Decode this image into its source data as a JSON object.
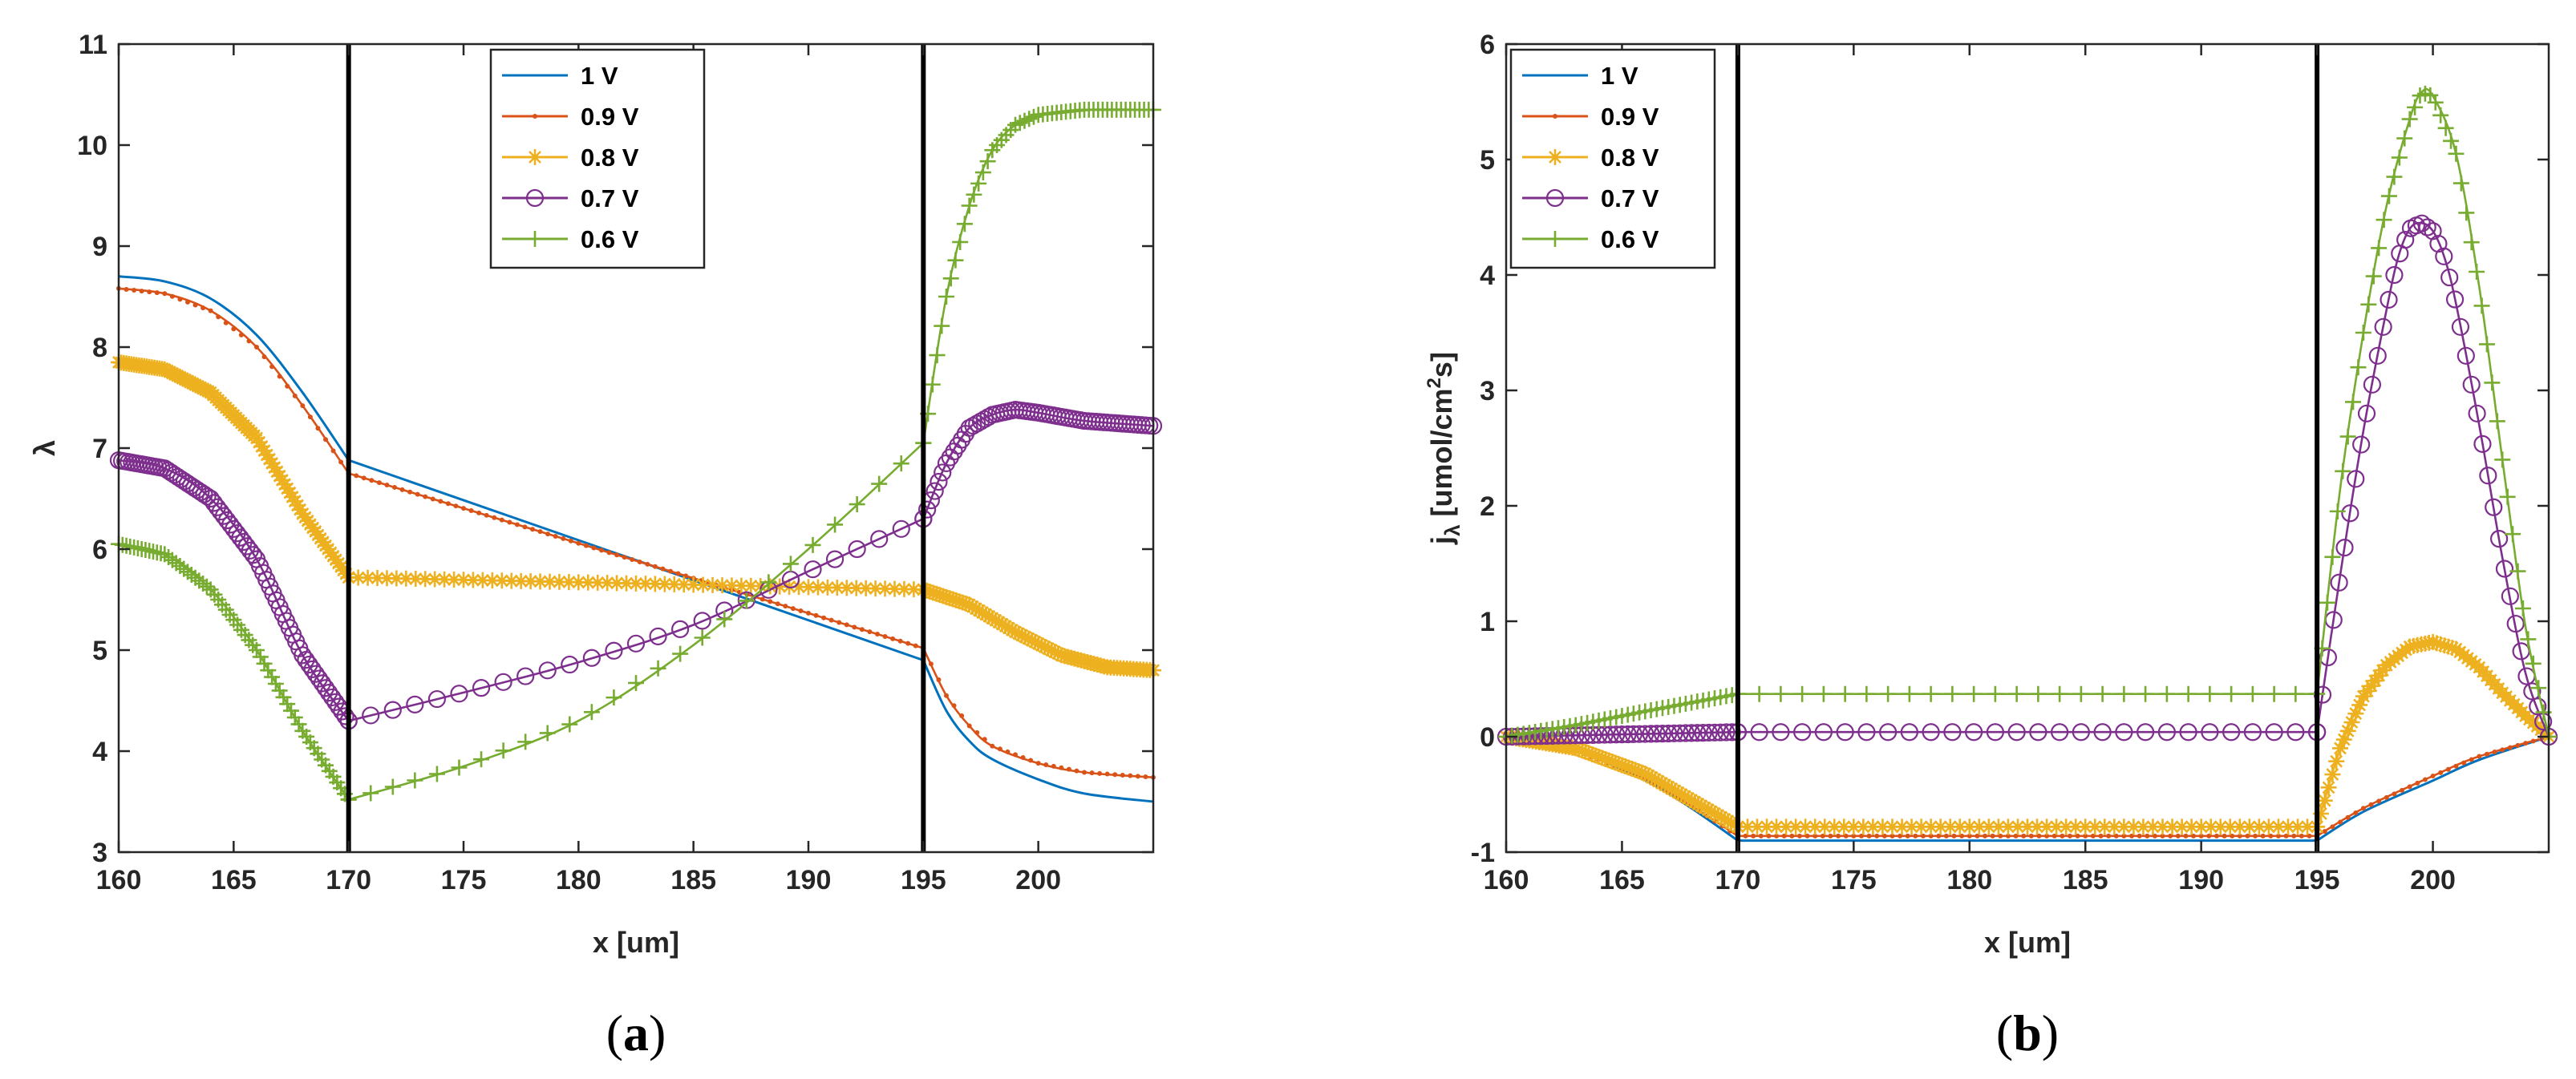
{
  "series_styles": [
    {
      "name": "1 V",
      "color": "#0072BD",
      "marker": "none"
    },
    {
      "name": "0.9 V",
      "color": "#D95319",
      "marker": "dot"
    },
    {
      "name": "0.8 V",
      "color": "#EDB120",
      "marker": "star"
    },
    {
      "name": "0.7 V",
      "color": "#7E2F8E",
      "marker": "circle"
    },
    {
      "name": "0.6 V",
      "color": "#77AC30",
      "marker": "plus"
    }
  ],
  "boundary_color": "#000000",
  "chart_data": [
    {
      "type": "line",
      "panel": "a",
      "caption": "a",
      "title": "",
      "xlabel": "x [um]",
      "ylabel": "λ",
      "xlim": [
        160,
        205
      ],
      "ylim": [
        3,
        11
      ],
      "xticks": [
        160,
        165,
        170,
        175,
        180,
        185,
        190,
        195,
        200
      ],
      "yticks": [
        3,
        4,
        5,
        6,
        7,
        8,
        9,
        10,
        11
      ],
      "boundaries": [
        170,
        195
      ],
      "legend_location": "top-center",
      "series": [
        {
          "name": "1 V",
          "segments": [
            {
              "x": [
                160,
                162,
                164,
                166,
                168,
                170
              ],
              "y": [
                8.7,
                8.65,
                8.48,
                8.12,
                7.55,
                6.88
              ],
              "n": 0
            },
            {
              "x": [
                170,
                195
              ],
              "y": [
                6.88,
                4.9
              ],
              "n": 0
            },
            {
              "x": [
                195,
                196,
                197,
                198,
                200,
                202,
                205
              ],
              "y": [
                4.9,
                4.4,
                4.1,
                3.92,
                3.72,
                3.58,
                3.5
              ],
              "n": 0
            }
          ]
        },
        {
          "name": "0.9 V",
          "segments": [
            {
              "x": [
                160,
                162,
                164,
                166,
                168,
                170
              ],
              "y": [
                8.58,
                8.53,
                8.36,
                8.0,
                7.42,
                6.75
              ],
              "n": 0
            },
            {
              "x": [
                170,
                195
              ],
              "y": [
                6.75,
                5.02
              ],
              "n": 0
            },
            {
              "x": [
                195,
                196,
                197,
                198,
                200,
                202,
                205
              ],
              "y": [
                5.02,
                4.55,
                4.25,
                4.05,
                3.88,
                3.79,
                3.74
              ],
              "n": 0
            }
          ]
        },
        {
          "name": "0.8 V",
          "segments": [
            {
              "x": [
                160,
                162,
                164,
                166,
                168,
                170
              ],
              "y": [
                7.85,
                7.78,
                7.55,
                7.1,
                6.35,
                5.72
              ],
              "n": 90
            },
            {
              "x": [
                170,
                195
              ],
              "y": [
                5.72,
                5.6
              ],
              "n": 60
            },
            {
              "x": [
                195,
                197,
                199,
                201,
                203,
                205
              ],
              "y": [
                5.6,
                5.45,
                5.18,
                4.95,
                4.83,
                4.8
              ],
              "n": 70
            }
          ]
        },
        {
          "name": "0.7 V",
          "segments": [
            {
              "x": [
                160,
                162,
                164,
                166,
                168,
                170
              ],
              "y": [
                6.88,
                6.8,
                6.5,
                5.9,
                4.95,
                4.3
              ],
              "n": 70
            },
            {
              "x": [
                170,
                175,
                180,
                185,
                190,
                195
              ],
              "y": [
                4.3,
                4.58,
                4.88,
                5.25,
                5.78,
                6.3
              ],
              "n": 26
            },
            {
              "x": [
                195,
                196,
                197,
                198,
                199,
                200,
                202,
                205
              ],
              "y": [
                6.3,
                6.85,
                7.2,
                7.33,
                7.38,
                7.35,
                7.27,
                7.22
              ],
              "n": 60
            }
          ]
        },
        {
          "name": "0.6 V",
          "segments": [
            {
              "x": [
                160,
                162,
                164,
                166,
                168,
                170
              ],
              "y": [
                6.05,
                5.95,
                5.6,
                5.0,
                4.2,
                3.52
              ],
              "n": 60
            },
            {
              "x": [
                170,
                175,
                180,
                185,
                190,
                195
              ],
              "y": [
                3.52,
                3.85,
                4.3,
                5.05,
                6.0,
                7.05
              ],
              "n": 26
            },
            {
              "x": [
                195,
                196,
                197,
                198,
                199,
                200,
                202,
                205
              ],
              "y": [
                7.05,
                8.5,
                9.4,
                9.95,
                10.2,
                10.3,
                10.35,
                10.35
              ],
              "n": 50
            }
          ]
        }
      ]
    },
    {
      "type": "line",
      "panel": "b",
      "caption": "b",
      "title": "",
      "xlabel": "x [um]",
      "ylabel": "jλ [umol/cm2s]",
      "ylabel_parts": {
        "main": "j",
        "sub": "λ",
        "unit_a": " [umol/cm",
        "sup": "2",
        "unit_b": "s]"
      },
      "xlim": [
        160,
        205
      ],
      "ylim": [
        -1,
        6
      ],
      "xticks": [
        160,
        165,
        170,
        175,
        180,
        185,
        190,
        195,
        200
      ],
      "yticks": [
        -1,
        0,
        1,
        2,
        3,
        4,
        5,
        6
      ],
      "boundaries": [
        170,
        195
      ],
      "legend_location": "top-left",
      "series": [
        {
          "name": "1 V",
          "segments": [
            {
              "x": [
                160,
                163,
                166,
                168,
                170
              ],
              "y": [
                0.0,
                -0.12,
                -0.38,
                -0.62,
                -0.9
              ],
              "n": 0
            },
            {
              "x": [
                170,
                195
              ],
              "y": [
                -0.9,
                -0.9
              ],
              "n": 0
            },
            {
              "x": [
                195,
                197,
                200,
                202,
                205
              ],
              "y": [
                -0.9,
                -0.65,
                -0.38,
                -0.2,
                0.0
              ],
              "n": 0
            }
          ]
        },
        {
          "name": "0.9 V",
          "segments": [
            {
              "x": [
                160,
                163,
                166,
                168,
                170
              ],
              "y": [
                0.0,
                -0.12,
                -0.36,
                -0.6,
                -0.86
              ],
              "n": 0
            },
            {
              "x": [
                170,
                195
              ],
              "y": [
                -0.86,
                -0.86
              ],
              "n": 0
            },
            {
              "x": [
                195,
                197,
                200,
                202,
                205
              ],
              "y": [
                -0.86,
                -0.62,
                -0.34,
                -0.17,
                0.0
              ],
              "n": 0
            }
          ]
        },
        {
          "name": "0.8 V",
          "segments": [
            {
              "x": [
                160,
                163,
                166,
                168,
                170
              ],
              "y": [
                0.0,
                -0.1,
                -0.32,
                -0.55,
                -0.78
              ],
              "n": 70
            },
            {
              "x": [
                170,
                195
              ],
              "y": [
                -0.78,
                -0.78
              ],
              "n": 60
            },
            {
              "x": [
                195,
                196,
                197,
                198,
                199,
                200,
                201,
                202,
                203,
                204,
                205
              ],
              "y": [
                -0.78,
                -0.1,
                0.35,
                0.62,
                0.78,
                0.82,
                0.76,
                0.6,
                0.38,
                0.18,
                0.0
              ],
              "n": 60
            }
          ]
        },
        {
          "name": "0.7 V",
          "segments": [
            {
              "x": [
                160,
                165,
                170
              ],
              "y": [
                0.0,
                0.02,
                0.04
              ],
              "n": 40
            },
            {
              "x": [
                170,
                195
              ],
              "y": [
                0.04,
                0.04
              ],
              "n": 27
            },
            {
              "x": [
                195,
                196,
                197,
                198,
                198.5,
                199,
                199.5,
                200,
                200.5,
                201,
                202,
                203,
                204,
                205
              ],
              "y": [
                0.04,
                1.4,
                2.65,
                3.7,
                4.15,
                4.4,
                4.45,
                4.38,
                4.15,
                3.75,
                2.7,
                1.55,
                0.55,
                0.0
              ],
              "n": 42
            }
          ]
        },
        {
          "name": "0.6 V",
          "segments": [
            {
              "x": [
                160,
                163,
                166,
                170
              ],
              "y": [
                0.0,
                0.1,
                0.22,
                0.37
              ],
              "n": 40
            },
            {
              "x": [
                170,
                195
              ],
              "y": [
                0.37,
                0.37
              ],
              "n": 27
            },
            {
              "x": [
                195,
                196,
                197,
                198,
                199,
                199.5,
                200,
                201,
                202,
                203,
                204,
                205
              ],
              "y": [
                0.37,
                2.15,
                3.5,
                4.6,
                5.35,
                5.58,
                5.55,
                5.05,
                3.9,
                2.4,
                0.95,
                0.0
              ],
              "n": 45
            }
          ]
        }
      ]
    }
  ]
}
